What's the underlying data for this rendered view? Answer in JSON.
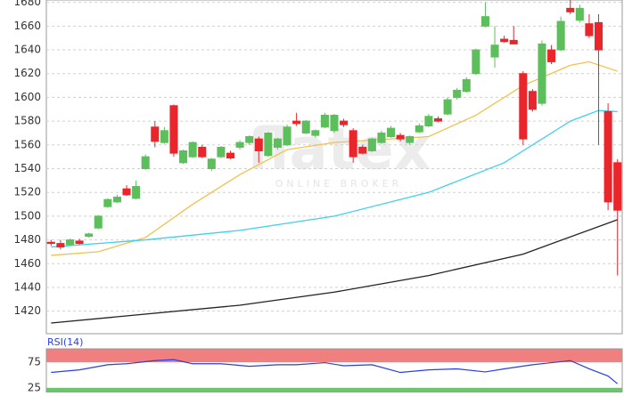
{
  "chart_data": [
    {
      "type": "candlestick",
      "watermark": "flatex",
      "watermark_sub": "ONLINE BROKER",
      "ylim": [
        1401,
        1682
      ],
      "yticks": [
        1420,
        1440,
        1460,
        1480,
        1500,
        1520,
        1540,
        1560,
        1580,
        1600,
        1620,
        1640,
        1660,
        1680
      ],
      "grid": true,
      "up_color": "#5cbf5c",
      "down_color": "#e8262b",
      "open": [
        1478,
        1477,
        1476,
        1479,
        1483,
        1490,
        1508,
        1512,
        1523,
        1515,
        1540,
        1575,
        1562,
        1593,
        1545,
        1550,
        1558,
        1540,
        1550,
        1553,
        1558,
        1562,
        1565,
        1551,
        1558,
        1560,
        1580,
        1570,
        1568,
        1575,
        1572,
        1580,
        1572,
        1558,
        1555,
        1562,
        1567,
        1568,
        1562,
        1571,
        1576,
        1582,
        1586,
        1600,
        1605,
        1620,
        1660,
        1634,
        1649,
        1648,
        1620,
        1605,
        1595,
        1640,
        1640,
        1675,
        1665,
        1662,
        1663,
        1588,
        1545
      ],
      "high": [
        1480,
        1480,
        1481,
        1481,
        1486,
        1501,
        1515,
        1518,
        1526,
        1530,
        1552,
        1580,
        1575,
        1594,
        1556,
        1563,
        1560,
        1549,
        1559,
        1555,
        1564,
        1568,
        1567,
        1571,
        1566,
        1577,
        1587,
        1581,
        1573,
        1587,
        1586,
        1582,
        1574,
        1560,
        1566,
        1572,
        1576,
        1570,
        1568,
        1578,
        1586,
        1584,
        1600,
        1608,
        1617,
        1641,
        1680,
        1660,
        1652,
        1660,
        1622,
        1607,
        1648,
        1644,
        1668,
        1682,
        1678,
        1670,
        1670,
        1595,
        1548
      ],
      "low": [
        1475,
        1472,
        1475,
        1476,
        1482,
        1489,
        1507,
        1511,
        1517,
        1514,
        1539,
        1558,
        1561,
        1550,
        1544,
        1549,
        1549,
        1538,
        1549,
        1548,
        1556,
        1560,
        1545,
        1550,
        1556,
        1559,
        1576,
        1569,
        1566,
        1574,
        1570,
        1575,
        1545,
        1552,
        1554,
        1561,
        1566,
        1563,
        1560,
        1570,
        1575,
        1579,
        1585,
        1598,
        1604,
        1619,
        1659,
        1625,
        1646,
        1645,
        1560,
        1588,
        1593,
        1628,
        1639,
        1670,
        1663,
        1650,
        1560,
        1505,
        1450
      ],
      "close": [
        1477,
        1474,
        1480,
        1477,
        1485,
        1500,
        1514,
        1516,
        1518,
        1525,
        1550,
        1563,
        1572,
        1553,
        1555,
        1562,
        1550,
        1548,
        1558,
        1549,
        1562,
        1567,
        1555,
        1570,
        1565,
        1575,
        1578,
        1580,
        1572,
        1585,
        1585,
        1577,
        1550,
        1553,
        1565,
        1570,
        1574,
        1565,
        1567,
        1576,
        1584,
        1580,
        1598,
        1606,
        1615,
        1640,
        1668,
        1644,
        1647,
        1645,
        1565,
        1590,
        1645,
        1630,
        1664,
        1672,
        1675,
        1652,
        1640,
        1512,
        1505
      ],
      "lines": [
        {
          "color": "#f2c14e",
          "x": [
            0,
            5,
            10,
            15,
            20,
            25,
            30,
            40,
            45,
            50,
            55,
            57,
            60
          ],
          "values": [
            1467,
            1470,
            1482,
            1510,
            1535,
            1556,
            1562,
            1567,
            1585,
            1610,
            1627,
            1630,
            1622
          ]
        },
        {
          "color": "#3fd0ef",
          "x": [
            0,
            10,
            20,
            30,
            40,
            48,
            55,
            58,
            60
          ],
          "values": [
            1474,
            1480,
            1488,
            1500,
            1520,
            1545,
            1580,
            1589,
            1588
          ]
        },
        {
          "color": "#222222",
          "x": [
            0,
            20,
            30,
            40,
            50,
            60
          ],
          "values": [
            1410,
            1425,
            1436,
            1450,
            1468,
            1497
          ]
        }
      ]
    },
    {
      "type": "line",
      "title": "RSI(14)",
      "ylim": [
        16,
        101
      ],
      "yticks": [
        25,
        75
      ],
      "upper_color": "#f08080",
      "lower_color": "#6cc46c",
      "color": "#2a3fe0",
      "x": [
        0,
        3,
        6,
        8,
        11,
        13,
        15,
        18,
        21,
        24,
        26,
        29,
        31,
        34,
        37,
        40,
        43,
        46,
        48,
        51,
        53,
        55,
        57,
        59,
        60
      ],
      "values": [
        55,
        60,
        70,
        72,
        78,
        80,
        72,
        72,
        67,
        70,
        70,
        74,
        68,
        70,
        55,
        60,
        62,
        56,
        62,
        70,
        74,
        78,
        62,
        48,
        33
      ]
    }
  ]
}
